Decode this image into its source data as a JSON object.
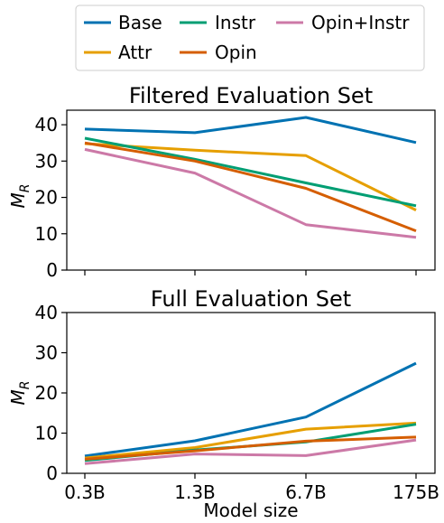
{
  "chart_data": [
    {
      "type": "line",
      "title": "Filtered Evaluation Set",
      "ylabel": "M",
      "ylabel_sub": "R",
      "xlabel": "",
      "categories": [
        "0.3B",
        "1.3B",
        "6.7B",
        "175B"
      ],
      "ylim": [
        0,
        44
      ],
      "yticks": [
        0,
        10,
        20,
        30,
        40
      ],
      "grid": false,
      "show_x_tick_labels": false,
      "series": [
        {
          "name": "Base",
          "color": "#0072b2",
          "values": [
            38.8,
            37.8,
            42.0,
            35.1
          ]
        },
        {
          "name": "Attr",
          "color": "#e69f00",
          "values": [
            34.8,
            33.0,
            31.5,
            16.5
          ]
        },
        {
          "name": "Instr",
          "color": "#009e73",
          "values": [
            36.3,
            30.5,
            24.0,
            17.7
          ]
        },
        {
          "name": "Opin",
          "color": "#d55e00",
          "values": [
            35.0,
            30.0,
            22.5,
            10.8
          ]
        },
        {
          "name": "Opin+Instr",
          "color": "#cc79a7",
          "values": [
            33.2,
            26.7,
            12.5,
            9.0
          ]
        }
      ]
    },
    {
      "type": "line",
      "title": "Full Evaluation Set",
      "ylabel": "M",
      "ylabel_sub": "R",
      "xlabel": "Model size",
      "categories": [
        "0.3B",
        "1.3B",
        "6.7B",
        "175B"
      ],
      "ylim": [
        0,
        40
      ],
      "yticks": [
        0,
        10,
        20,
        30,
        40
      ],
      "grid": false,
      "show_x_tick_labels": true,
      "series": [
        {
          "name": "Base",
          "color": "#0072b2",
          "values": [
            4.3,
            8.1,
            14.0,
            27.4
          ]
        },
        {
          "name": "Attr",
          "color": "#e69f00",
          "values": [
            3.8,
            6.4,
            11.0,
            12.5
          ]
        },
        {
          "name": "Instr",
          "color": "#009e73",
          "values": [
            3.2,
            5.8,
            7.8,
            12.2
          ]
        },
        {
          "name": "Opin",
          "color": "#d55e00",
          "values": [
            3.5,
            5.6,
            8.0,
            9.0
          ]
        },
        {
          "name": "Opin+Instr",
          "color": "#cc79a7",
          "values": [
            2.4,
            4.8,
            4.4,
            8.3
          ]
        }
      ]
    }
  ],
  "legend": {
    "placement": "top-center",
    "entries": [
      {
        "name": "Base",
        "color": "#0072b2"
      },
      {
        "name": "Instr",
        "color": "#009e73"
      },
      {
        "name": "Opin+Instr",
        "color": "#cc79a7"
      },
      {
        "name": "Attr",
        "color": "#e69f00"
      },
      {
        "name": "Opin",
        "color": "#d55e00"
      }
    ]
  }
}
